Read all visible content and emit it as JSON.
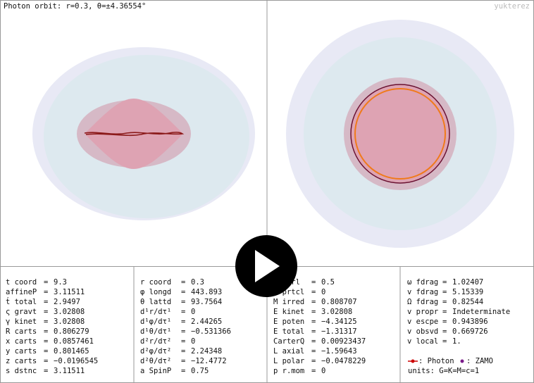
{
  "title": "Photon orbit: r=0.3, θ=±4.36554°",
  "watermark": "yukterez",
  "separator": "=",
  "columns": [
    {
      "rows": [
        {
          "label": "t coord",
          "value": "9.3"
        },
        {
          "label": "affineP",
          "value": "3.11511"
        },
        {
          "label": "ṫ total",
          "value": "2.9497"
        },
        {
          "label": "ς gravt",
          "value": "3.02808"
        },
        {
          "label": "γ kinet",
          "value": "3.02808"
        },
        {
          "label": "R carts",
          "value": "0.806279"
        },
        {
          "label": "x carts",
          "value": "0.0857461"
        },
        {
          "label": "y carts",
          "value": "0.801465"
        },
        {
          "label": "z carts",
          "value": "−0.0196545"
        },
        {
          "label": "s dstnc",
          "value": "3.11511"
        }
      ]
    },
    {
      "rows": [
        {
          "label": "r coord",
          "value": "0.3"
        },
        {
          "label": "φ longd",
          "value": "443.893"
        },
        {
          "label": "θ lattd",
          "value": "93.7564"
        },
        {
          "label": "d¹r/dτ¹",
          "value": "0"
        },
        {
          "label": "d¹φ/dτ¹",
          "value": "2.44265"
        },
        {
          "label": "d¹θ/dτ¹",
          "value": "−0.531366"
        },
        {
          "label": "d²r/dτ²",
          "value": "0"
        },
        {
          "label": "d²φ/dτ²",
          "value": "2.24348"
        },
        {
          "label": "d²θ/dτ²",
          "value": "−12.4772"
        },
        {
          "label": "a SpinP",
          "value": "0.75"
        }
      ]
    },
    {
      "rows": [
        {
          "label": "Q ctrl",
          "value": "0.5"
        },
        {
          "label": "Q prtcl",
          "value": "0"
        },
        {
          "label": "M irred",
          "value": "0.808707"
        },
        {
          "label": "E kinet",
          "value": "3.02808"
        },
        {
          "label": "E poten",
          "value": "−4.34125"
        },
        {
          "label": "E total",
          "value": "−1.31317"
        },
        {
          "label": "CarterQ",
          "value": "0.00923437"
        },
        {
          "label": "L axial",
          "value": "−1.59643"
        },
        {
          "label": "L polar",
          "value": "−0.0478229"
        },
        {
          "label": "p r.mom",
          "value": "0"
        }
      ]
    },
    {
      "rows": [
        {
          "label": "ω fdrag",
          "value": "1.02407"
        },
        {
          "label": "v fdrag",
          "value": "5.15339"
        },
        {
          "label": "Ω fdrag",
          "value": "0.82544"
        },
        {
          "label": "v propr",
          "value": "Indeterminate"
        },
        {
          "label": "v escpe",
          "value": "0.943896"
        },
        {
          "label": "v obsvd",
          "value": "0.669726"
        },
        {
          "label": "v local",
          "value": "1."
        }
      ]
    }
  ],
  "legend": {
    "photon": ": Photon",
    "zamo": ": ZAMO",
    "units": "units: G=K=M=c=1"
  }
}
